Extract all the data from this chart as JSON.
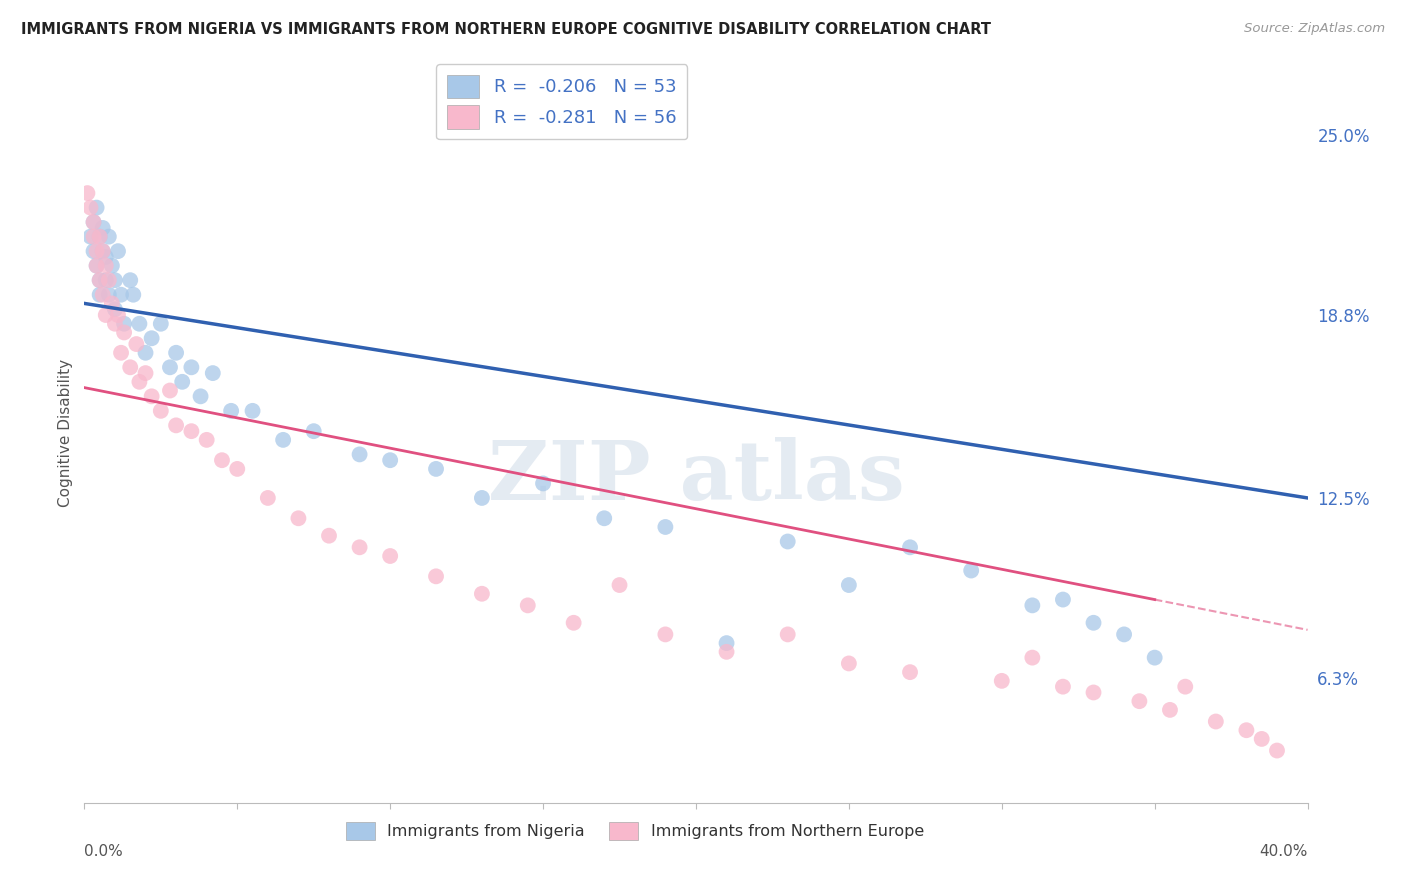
{
  "title": "IMMIGRANTS FROM NIGERIA VS IMMIGRANTS FROM NORTHERN EUROPE COGNITIVE DISABILITY CORRELATION CHART",
  "source": "Source: ZipAtlas.com",
  "ylabel": "Cognitive Disability",
  "ytick_labels": [
    "6.3%",
    "12.5%",
    "18.8%",
    "25.0%"
  ],
  "ytick_values": [
    0.063,
    0.125,
    0.188,
    0.25
  ],
  "xmin": 0.0,
  "xmax": 0.4,
  "ymin": 0.02,
  "ymax": 0.275,
  "nigeria_R": -0.206,
  "nigeria_N": 53,
  "northern_europe_R": -0.281,
  "northern_europe_N": 56,
  "blue_color": "#a8c8e8",
  "pink_color": "#f8b8cc",
  "blue_line_color": "#3060b0",
  "pink_line_color": "#e05080",
  "legend_label_1": "Immigrants from Nigeria",
  "legend_label_2": "Immigrants from Northern Europe",
  "nigeria_x": [
    0.002,
    0.003,
    0.003,
    0.004,
    0.004,
    0.005,
    0.005,
    0.005,
    0.006,
    0.006,
    0.007,
    0.007,
    0.008,
    0.008,
    0.009,
    0.01,
    0.01,
    0.011,
    0.012,
    0.013,
    0.015,
    0.016,
    0.018,
    0.02,
    0.022,
    0.025,
    0.028,
    0.03,
    0.032,
    0.035,
    0.038,
    0.042,
    0.048,
    0.055,
    0.065,
    0.075,
    0.09,
    0.1,
    0.115,
    0.13,
    0.15,
    0.17,
    0.19,
    0.21,
    0.23,
    0.25,
    0.27,
    0.29,
    0.31,
    0.32,
    0.33,
    0.34,
    0.35
  ],
  "nigeria_y": [
    0.215,
    0.22,
    0.21,
    0.205,
    0.225,
    0.2,
    0.215,
    0.195,
    0.21,
    0.218,
    0.2,
    0.208,
    0.215,
    0.195,
    0.205,
    0.2,
    0.19,
    0.21,
    0.195,
    0.185,
    0.2,
    0.195,
    0.185,
    0.175,
    0.18,
    0.185,
    0.17,
    0.175,
    0.165,
    0.17,
    0.16,
    0.168,
    0.155,
    0.155,
    0.145,
    0.148,
    0.14,
    0.138,
    0.135,
    0.125,
    0.13,
    0.118,
    0.115,
    0.075,
    0.11,
    0.095,
    0.108,
    0.1,
    0.088,
    0.09,
    0.082,
    0.078,
    0.07
  ],
  "northern_europe_x": [
    0.001,
    0.002,
    0.003,
    0.003,
    0.004,
    0.004,
    0.005,
    0.005,
    0.006,
    0.006,
    0.007,
    0.007,
    0.008,
    0.009,
    0.01,
    0.011,
    0.012,
    0.013,
    0.015,
    0.017,
    0.018,
    0.02,
    0.022,
    0.025,
    0.028,
    0.03,
    0.035,
    0.04,
    0.045,
    0.05,
    0.06,
    0.07,
    0.08,
    0.09,
    0.1,
    0.115,
    0.13,
    0.145,
    0.16,
    0.175,
    0.19,
    0.21,
    0.23,
    0.25,
    0.27,
    0.3,
    0.31,
    0.32,
    0.33,
    0.345,
    0.355,
    0.36,
    0.37,
    0.38,
    0.385,
    0.39
  ],
  "northern_europe_y": [
    0.23,
    0.225,
    0.215,
    0.22,
    0.21,
    0.205,
    0.215,
    0.2,
    0.21,
    0.195,
    0.205,
    0.188,
    0.2,
    0.192,
    0.185,
    0.188,
    0.175,
    0.182,
    0.17,
    0.178,
    0.165,
    0.168,
    0.16,
    0.155,
    0.162,
    0.15,
    0.148,
    0.145,
    0.138,
    0.135,
    0.125,
    0.118,
    0.112,
    0.108,
    0.105,
    0.098,
    0.092,
    0.088,
    0.082,
    0.095,
    0.078,
    0.072,
    0.078,
    0.068,
    0.065,
    0.062,
    0.07,
    0.06,
    0.058,
    0.055,
    0.052,
    0.06,
    0.048,
    0.045,
    0.042,
    0.038
  ],
  "blue_line_x0": 0.0,
  "blue_line_x1": 0.4,
  "blue_line_y0": 0.192,
  "blue_line_y1": 0.125,
  "pink_line_x0": 0.0,
  "pink_line_x1": 0.35,
  "pink_line_y0": 0.163,
  "pink_line_y1": 0.09
}
